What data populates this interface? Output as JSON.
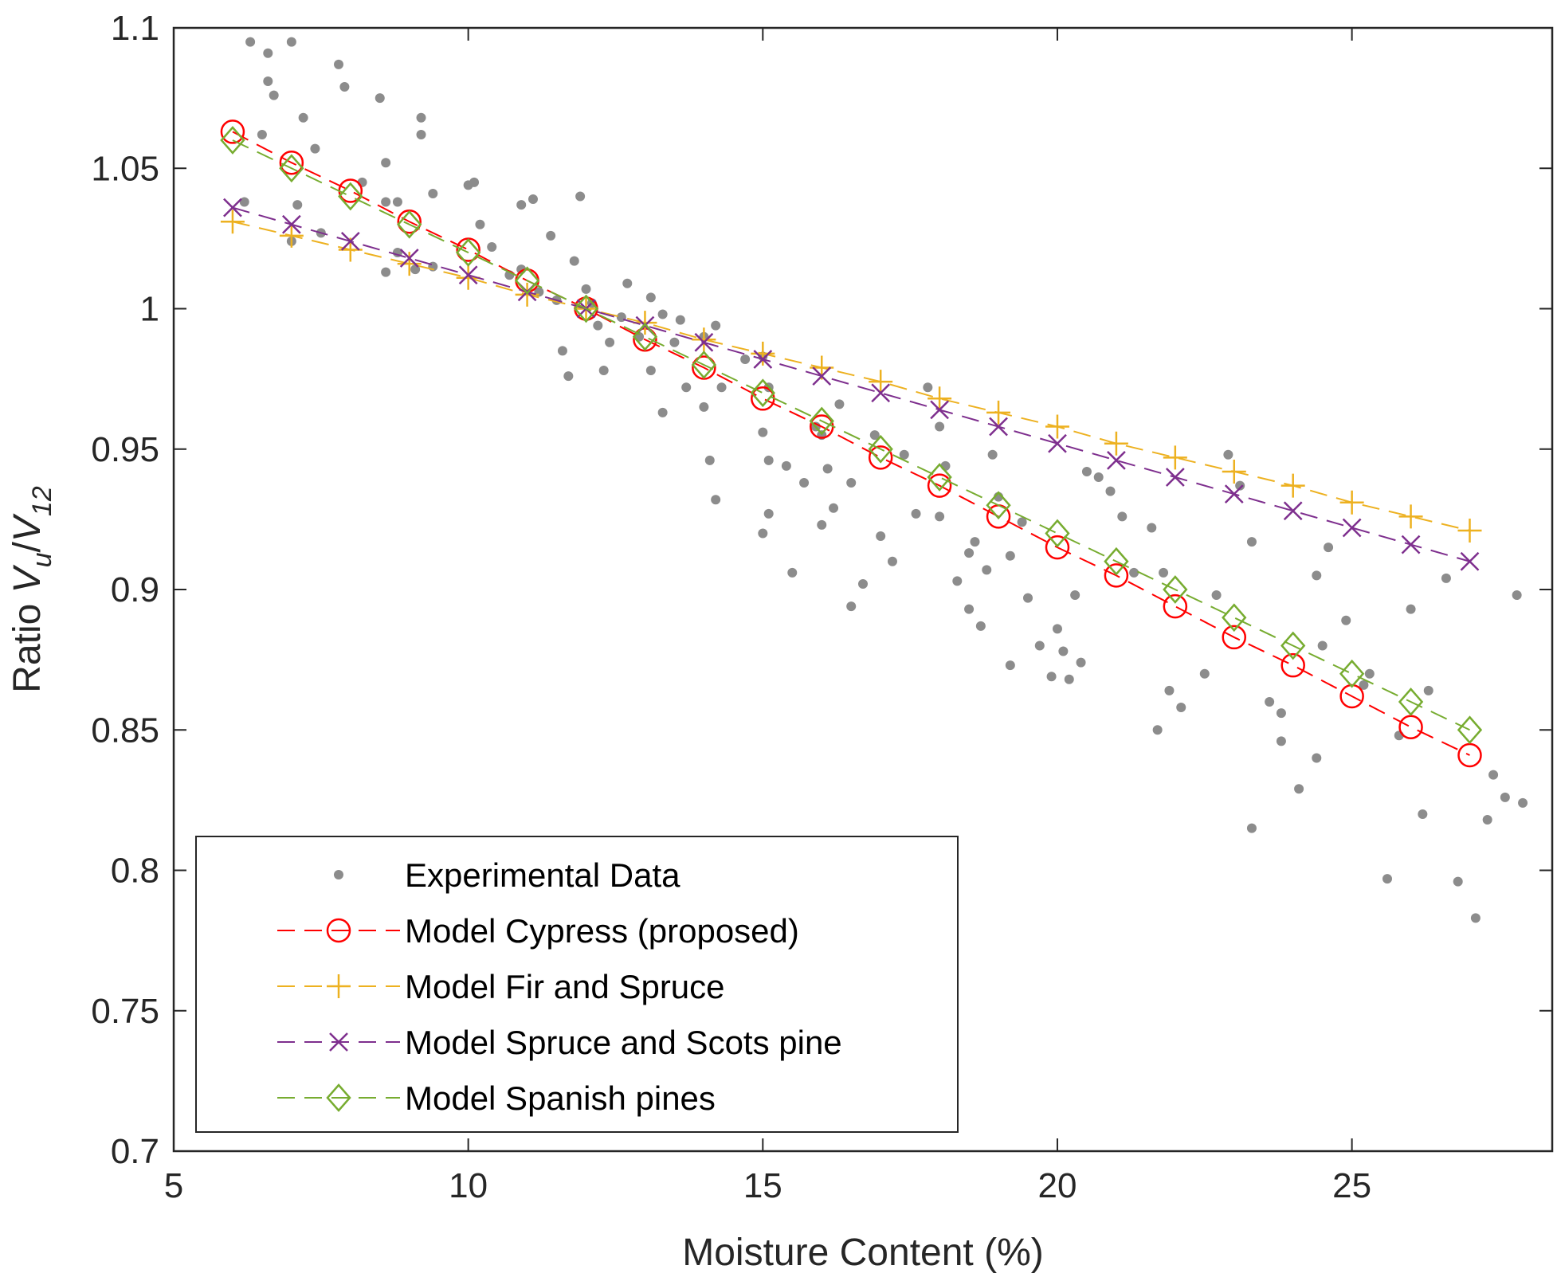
{
  "chart_data": {
    "type": "scatter",
    "title": "",
    "xlabel": "Moisture Content (%)",
    "ylabel": {
      "prefix": "Ratio ",
      "v1": "V",
      "s1": "u",
      "slash": "/",
      "v2": "V",
      "s2": "12"
    },
    "xlim": [
      5,
      28.4
    ],
    "ylim": [
      0.7,
      1.1
    ],
    "xticks": [
      5,
      10,
      15,
      20,
      25
    ],
    "xtick_labels": [
      "5",
      "10",
      "15",
      "20",
      "25"
    ],
    "yticks": [
      0.7,
      0.75,
      0.8,
      0.85,
      0.9,
      0.95,
      1.0,
      1.05,
      1.1
    ],
    "ytick_labels": [
      "0.7",
      "0.75",
      "0.8",
      "0.85",
      "0.9",
      "0.95",
      "1",
      "1.05",
      "1.1"
    ],
    "grid": false,
    "legend_position": "bottom-left",
    "scatter": {
      "name": "Experimental Data",
      "color": "#8c8c8c",
      "points": [
        [
          6.3,
          1.095
        ],
        [
          6.6,
          1.091
        ],
        [
          7.0,
          1.095
        ],
        [
          7.8,
          1.087
        ],
        [
          6.6,
          1.081
        ],
        [
          6.7,
          1.076
        ],
        [
          7.9,
          1.079
        ],
        [
          8.5,
          1.075
        ],
        [
          7.2,
          1.068
        ],
        [
          9.2,
          1.068
        ],
        [
          9.2,
          1.062
        ],
        [
          6.5,
          1.062
        ],
        [
          8.2,
          1.045
        ],
        [
          8.6,
          1.052
        ],
        [
          7.1,
          1.037
        ],
        [
          7.4,
          1.057
        ],
        [
          9.4,
          1.041
        ],
        [
          10.0,
          1.044
        ],
        [
          10.1,
          1.045
        ],
        [
          10.9,
          1.037
        ],
        [
          11.1,
          1.039
        ],
        [
          11.4,
          1.026
        ],
        [
          6.2,
          1.038
        ],
        [
          8.6,
          1.038
        ],
        [
          8.8,
          1.038
        ],
        [
          7.0,
          1.024
        ],
        [
          7.5,
          1.027
        ],
        [
          8.6,
          1.013
        ],
        [
          8.8,
          1.02
        ],
        [
          9.1,
          1.014
        ],
        [
          9.4,
          1.015
        ],
        [
          10.2,
          1.03
        ],
        [
          10.4,
          1.022
        ],
        [
          10.7,
          1.012
        ],
        [
          10.9,
          1.014
        ],
        [
          11.2,
          1.006
        ],
        [
          11.5,
          1.003
        ],
        [
          11.8,
          1.017
        ],
        [
          12.0,
          1.007
        ],
        [
          11.9,
          1.04
        ],
        [
          12.1,
          1.002
        ],
        [
          12.2,
          0.994
        ],
        [
          12.4,
          0.988
        ],
        [
          12.6,
          0.997
        ],
        [
          12.7,
          1.009
        ],
        [
          13.1,
          1.004
        ],
        [
          13.3,
          0.998
        ],
        [
          13.6,
          0.996
        ],
        [
          12.9,
          0.99
        ],
        [
          12.3,
          0.978
        ],
        [
          11.7,
          0.976
        ],
        [
          11.6,
          0.985
        ],
        [
          13.1,
          0.978
        ],
        [
          13.5,
          0.988
        ],
        [
          14.0,
          0.99
        ],
        [
          14.2,
          0.994
        ],
        [
          13.7,
          0.972
        ],
        [
          14.3,
          0.972
        ],
        [
          14.0,
          0.965
        ],
        [
          14.7,
          0.982
        ],
        [
          15.0,
          0.983
        ],
        [
          15.1,
          0.972
        ],
        [
          15.0,
          0.956
        ],
        [
          15.1,
          0.946
        ],
        [
          15.0,
          0.92
        ],
        [
          15.1,
          0.927
        ],
        [
          14.1,
          0.946
        ],
        [
          14.2,
          0.932
        ],
        [
          13.3,
          0.963
        ],
        [
          15.4,
          0.944
        ],
        [
          15.5,
          0.906
        ],
        [
          15.7,
          0.938
        ],
        [
          15.9,
          0.958
        ],
        [
          16.0,
          0.955
        ],
        [
          16.1,
          0.943
        ],
        [
          16.2,
          0.929
        ],
        [
          16.0,
          0.923
        ],
        [
          16.3,
          0.966
        ],
        [
          16.5,
          0.938
        ],
        [
          16.5,
          0.894
        ],
        [
          16.7,
          0.902
        ],
        [
          16.9,
          0.955
        ],
        [
          17.0,
          0.919
        ],
        [
          17.2,
          0.91
        ],
        [
          17.4,
          0.948
        ],
        [
          17.6,
          0.927
        ],
        [
          17.8,
          0.972
        ],
        [
          18.0,
          0.958
        ],
        [
          18.1,
          0.944
        ],
        [
          18.0,
          0.926
        ],
        [
          18.3,
          0.903
        ],
        [
          18.5,
          0.913
        ],
        [
          18.6,
          0.917
        ],
        [
          18.5,
          0.893
        ],
        [
          18.7,
          0.887
        ],
        [
          18.8,
          0.907
        ],
        [
          18.9,
          0.948
        ],
        [
          19.0,
          0.933
        ],
        [
          19.2,
          0.912
        ],
        [
          19.4,
          0.924
        ],
        [
          19.5,
          0.897
        ],
        [
          19.2,
          0.873
        ],
        [
          19.7,
          0.88
        ],
        [
          19.9,
          0.869
        ],
        [
          20.0,
          0.886
        ],
        [
          20.1,
          0.878
        ],
        [
          20.2,
          0.868
        ],
        [
          20.4,
          0.874
        ],
        [
          20.3,
          0.898
        ],
        [
          20.5,
          0.942
        ],
        [
          20.7,
          0.94
        ],
        [
          20.9,
          0.935
        ],
        [
          21.1,
          0.926
        ],
        [
          21.3,
          0.906
        ],
        [
          21.6,
          0.922
        ],
        [
          21.8,
          0.906
        ],
        [
          21.7,
          0.85
        ],
        [
          21.9,
          0.864
        ],
        [
          22.1,
          0.858
        ],
        [
          22.5,
          0.87
        ],
        [
          22.7,
          0.898
        ],
        [
          22.9,
          0.948
        ],
        [
          23.1,
          0.937
        ],
        [
          23.3,
          0.917
        ],
        [
          23.3,
          0.815
        ],
        [
          23.6,
          0.86
        ],
        [
          23.8,
          0.856
        ],
        [
          23.8,
          0.846
        ],
        [
          24.1,
          0.829
        ],
        [
          24.4,
          0.84
        ],
        [
          24.4,
          0.905
        ],
        [
          24.6,
          0.915
        ],
        [
          24.9,
          0.889
        ],
        [
          24.5,
          0.88
        ],
        [
          25.2,
          0.866
        ],
        [
          25.3,
          0.87
        ],
        [
          25.6,
          0.797
        ],
        [
          25.8,
          0.848
        ],
        [
          26.0,
          0.893
        ],
        [
          26.2,
          0.82
        ],
        [
          26.3,
          0.864
        ],
        [
          26.6,
          0.904
        ],
        [
          26.8,
          0.796
        ],
        [
          27.1,
          0.783
        ],
        [
          27.3,
          0.818
        ],
        [
          27.4,
          0.834
        ],
        [
          27.6,
          0.826
        ],
        [
          27.8,
          0.898
        ],
        [
          27.9,
          0.824
        ]
      ]
    },
    "series": [
      {
        "name": "Model Cypress (proposed)",
        "marker": "circle",
        "color": "#ff0000",
        "x": [
          6,
          7,
          8,
          9,
          10,
          11,
          12,
          13,
          14,
          15,
          16,
          17,
          18,
          19,
          20,
          21,
          22,
          23,
          24,
          25,
          26,
          27
        ],
        "values": [
          1.063,
          1.052,
          1.042,
          1.031,
          1.021,
          1.01,
          1.0,
          0.989,
          0.979,
          0.968,
          0.958,
          0.947,
          0.937,
          0.926,
          0.915,
          0.905,
          0.894,
          0.883,
          0.873,
          0.862,
          0.851,
          0.841
        ]
      },
      {
        "name": "Model Fir and Spruce",
        "marker": "plus",
        "color": "#edb120",
        "x": [
          6,
          7,
          8,
          9,
          10,
          11,
          12,
          13,
          14,
          15,
          16,
          17,
          18,
          19,
          20,
          21,
          22,
          23,
          24,
          25,
          26,
          27
        ],
        "values": [
          1.031,
          1.026,
          1.021,
          1.016,
          1.011,
          1.005,
          1.0,
          0.995,
          0.989,
          0.984,
          0.979,
          0.974,
          0.968,
          0.963,
          0.958,
          0.952,
          0.947,
          0.942,
          0.937,
          0.931,
          0.926,
          0.921
        ]
      },
      {
        "name": "Model Spruce and Scots pine",
        "marker": "cross",
        "color": "#7e2f8e",
        "x": [
          6,
          7,
          8,
          9,
          10,
          11,
          12,
          13,
          14,
          15,
          16,
          17,
          18,
          19,
          20,
          21,
          22,
          23,
          24,
          25,
          26,
          27
        ],
        "values": [
          1.036,
          1.03,
          1.024,
          1.018,
          1.012,
          1.006,
          1.0,
          0.994,
          0.988,
          0.982,
          0.976,
          0.97,
          0.964,
          0.958,
          0.952,
          0.946,
          0.94,
          0.934,
          0.928,
          0.922,
          0.916,
          0.91
        ]
      },
      {
        "name": "Model Spanish pines",
        "marker": "diamond",
        "color": "#77ac30",
        "x": [
          6,
          7,
          8,
          9,
          10,
          11,
          12,
          13,
          14,
          15,
          16,
          17,
          18,
          19,
          20,
          21,
          22,
          23,
          24,
          25,
          26,
          27
        ],
        "values": [
          1.06,
          1.05,
          1.04,
          1.03,
          1.02,
          1.01,
          1.0,
          0.99,
          0.98,
          0.97,
          0.96,
          0.95,
          0.94,
          0.93,
          0.92,
          0.91,
          0.9,
          0.89,
          0.88,
          0.87,
          0.86,
          0.85
        ]
      }
    ]
  }
}
